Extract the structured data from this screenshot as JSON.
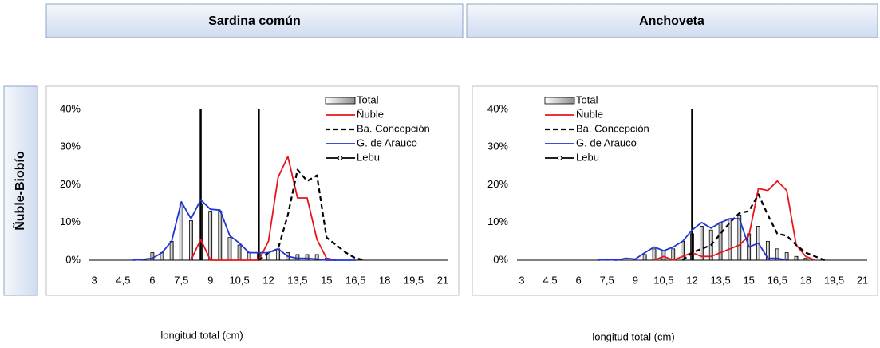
{
  "row_label": "Ñuble-Biobío",
  "chart_data": [
    {
      "type": "combo",
      "title": "Sardina común",
      "x_label": "longitud total (cm)",
      "x": [
        3,
        3.5,
        4,
        4.5,
        5,
        5.5,
        6,
        6.5,
        7,
        7.5,
        8,
        8.5,
        9,
        9.5,
        10,
        10.5,
        11,
        11.5,
        12,
        12.5,
        13,
        13.5,
        14,
        14.5,
        15,
        15.5,
        16,
        16.5,
        17,
        17.5,
        18,
        18.5,
        19,
        19.5,
        20,
        20.5,
        21
      ],
      "series": [
        {
          "name": "Total",
          "kind": "bar",
          "color": "#a6a6a6",
          "values": [
            null,
            null,
            null,
            null,
            null,
            null,
            2,
            2,
            5,
            15,
            10.5,
            15,
            13,
            13,
            6,
            4,
            2,
            2,
            2,
            3,
            2,
            1.5,
            1.5,
            1.5,
            0.5,
            null,
            null,
            null,
            null,
            null,
            null,
            null,
            null,
            null,
            null,
            null,
            null
          ]
        },
        {
          "name": "Ñuble",
          "kind": "line",
          "color": "#e8141b",
          "values": [
            null,
            null,
            null,
            null,
            null,
            null,
            null,
            null,
            null,
            null,
            0,
            5.5,
            0,
            0,
            0,
            0,
            0,
            0,
            5,
            22,
            27.5,
            16.5,
            16.5,
            5.5,
            0.5,
            0,
            null,
            null,
            null,
            null,
            null,
            null,
            null,
            null,
            null,
            null,
            null
          ]
        },
        {
          "name": "Ba. Concepción",
          "kind": "dashed",
          "color": "#000000",
          "values": [
            null,
            null,
            null,
            null,
            null,
            null,
            null,
            null,
            null,
            null,
            null,
            null,
            null,
            null,
            null,
            null,
            null,
            0,
            2,
            3,
            12,
            24,
            21,
            22.5,
            6,
            4,
            2,
            0.5,
            0,
            null,
            null,
            null,
            null,
            null,
            null,
            null,
            null
          ]
        },
        {
          "name": "G. de Arauco",
          "kind": "line",
          "color": "#1f35d6",
          "values": [
            null,
            null,
            null,
            null,
            0,
            0.2,
            0.5,
            2,
            5,
            15.5,
            11,
            16,
            13.5,
            13.3,
            6.5,
            4.5,
            2,
            2,
            2,
            3,
            1,
            0.5,
            0.5,
            0.3,
            0,
            0,
            0,
            0,
            null,
            null,
            null,
            null,
            null,
            null,
            null,
            null,
            null
          ]
        },
        {
          "name": "Lebu",
          "kind": "marker",
          "color": "#000000",
          "values": [
            null,
            null,
            null,
            null,
            null,
            null,
            null,
            null,
            null,
            null,
            null,
            null,
            null,
            null,
            null,
            null,
            null,
            null,
            null,
            null,
            null,
            null,
            null,
            null,
            null,
            null,
            null,
            null,
            null,
            null,
            null,
            null,
            null,
            null,
            null,
            null,
            null
          ]
        }
      ],
      "vlines": [
        8.5,
        11.5
      ],
      "xlim": [
        2.75,
        21.25
      ],
      "xticks": [
        3,
        {
          "value": 4.5,
          "label": "4,5"
        },
        6,
        {
          "value": 7.5,
          "label": "7,5"
        },
        9,
        {
          "value": 10.5,
          "label": "10,5"
        },
        12,
        {
          "value": 13.5,
          "label": "13,5"
        },
        15,
        {
          "value": 16.5,
          "label": "16,5"
        },
        18,
        {
          "value": 19.5,
          "label": "19,5"
        },
        21
      ],
      "ylim": [
        0,
        40
      ],
      "yticks": [
        {
          "value": 0,
          "label": "0%"
        },
        {
          "value": 10,
          "label": "10%"
        },
        {
          "value": 20,
          "label": "20%"
        },
        {
          "value": 30,
          "label": "30%"
        },
        {
          "value": 40,
          "label": "40%"
        }
      ],
      "grid": false,
      "legend": "top-right"
    },
    {
      "type": "combo",
      "title": "Anchoveta",
      "x_label": "longitud total (cm)",
      "x": [
        3,
        3.5,
        4,
        4.5,
        5,
        5.5,
        6,
        6.5,
        7,
        7.5,
        8,
        8.5,
        9,
        9.5,
        10,
        10.5,
        11,
        11.5,
        12,
        12.5,
        13,
        13.5,
        14,
        14.5,
        15,
        15.5,
        16,
        16.5,
        17,
        17.5,
        18,
        18.5,
        19,
        19.5,
        20,
        20.5,
        21
      ],
      "series": [
        {
          "name": "Total",
          "kind": "bar",
          "color": "#a6a6a6",
          "values": [
            null,
            null,
            null,
            null,
            null,
            null,
            null,
            null,
            null,
            null,
            null,
            null,
            null,
            1.5,
            3,
            2.5,
            3,
            5,
            7,
            9,
            8,
            10,
            11,
            12,
            7,
            9,
            5,
            3,
            2,
            1,
            0.5,
            null,
            null,
            null,
            null,
            null,
            null
          ]
        },
        {
          "name": "Ñuble",
          "kind": "line",
          "color": "#e8141b",
          "values": [
            null,
            null,
            null,
            null,
            null,
            null,
            null,
            null,
            null,
            null,
            null,
            null,
            null,
            null,
            0,
            1,
            0,
            1,
            2,
            1,
            1,
            2,
            3,
            4,
            6.5,
            19,
            18.5,
            21,
            18.5,
            4,
            1,
            0,
            null,
            null,
            null,
            null,
            null
          ]
        },
        {
          "name": "Ba. Concepción",
          "kind": "dashed",
          "color": "#000000",
          "values": [
            null,
            null,
            null,
            null,
            null,
            null,
            null,
            null,
            null,
            null,
            null,
            null,
            null,
            null,
            null,
            null,
            null,
            0,
            2,
            3,
            4,
            7,
            10,
            12.5,
            13,
            17.5,
            12,
            7,
            6.5,
            4,
            2,
            1,
            0,
            null,
            null,
            null,
            null
          ]
        },
        {
          "name": "G. de Arauco",
          "kind": "line",
          "color": "#1f35d6",
          "values": [
            null,
            null,
            null,
            null,
            null,
            null,
            null,
            null,
            0,
            0.2,
            0,
            0.5,
            0.3,
            2,
            3.5,
            2.5,
            3.5,
            5,
            8,
            10,
            8.5,
            10,
            11,
            11,
            3.5,
            4.5,
            0.5,
            0.5,
            0,
            null,
            null,
            null,
            null,
            null,
            null,
            null,
            null
          ]
        },
        {
          "name": "Lebu",
          "kind": "marker",
          "color": "#000000",
          "values": [
            null,
            null,
            null,
            null,
            null,
            null,
            null,
            null,
            null,
            null,
            null,
            null,
            null,
            null,
            null,
            null,
            null,
            null,
            null,
            null,
            null,
            null,
            null,
            null,
            null,
            null,
            null,
            null,
            null,
            null,
            null,
            null,
            null,
            null,
            null,
            null,
            null
          ]
        }
      ],
      "vlines": [
        12
      ],
      "xlim": [
        2.75,
        21.25
      ],
      "xticks": [
        3,
        {
          "value": 4.5,
          "label": "4,5"
        },
        6,
        {
          "value": 7.5,
          "label": "7,5"
        },
        9,
        {
          "value": 10.5,
          "label": "10,5"
        },
        12,
        {
          "value": 13.5,
          "label": "13,5"
        },
        15,
        {
          "value": 16.5,
          "label": "16,5"
        },
        18,
        {
          "value": 19.5,
          "label": "19,5"
        },
        21
      ],
      "ylim": [
        0,
        40
      ],
      "yticks": [
        {
          "value": 0,
          "label": "0%"
        },
        {
          "value": 10,
          "label": "10%"
        },
        {
          "value": 20,
          "label": "20%"
        },
        {
          "value": 30,
          "label": "30%"
        },
        {
          "value": 40,
          "label": "40%"
        }
      ],
      "grid": false,
      "legend": "top-left"
    }
  ]
}
